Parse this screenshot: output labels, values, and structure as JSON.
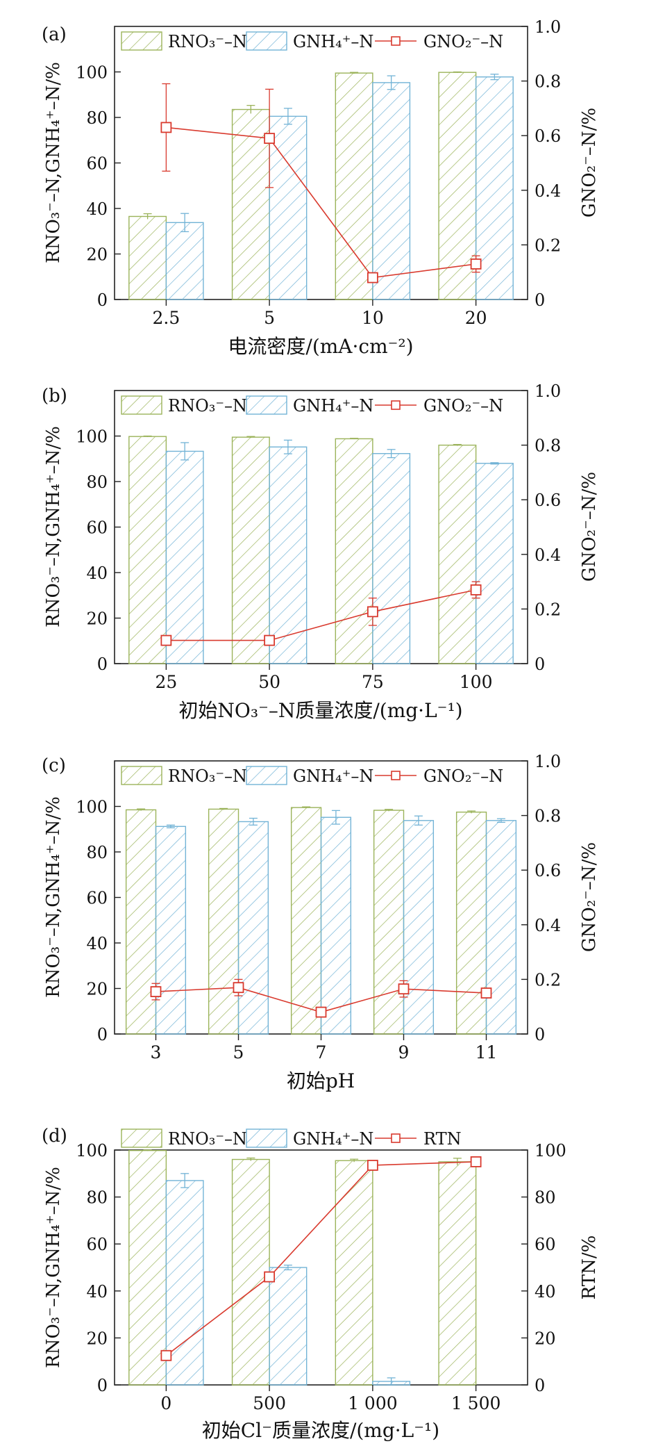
{
  "colors": {
    "green": "#9bb35a",
    "blue": "#72b3d6",
    "red": "#d93a2e",
    "axis": "#222222"
  },
  "chart_data": [
    {
      "panel_label": "(a)",
      "type": "bar",
      "categories": [
        "2.5",
        "5",
        "10",
        "20"
      ],
      "xlabel": "电流密度/(mA·cm⁻²)",
      "ylabel": "RNO₃⁻–N,GNH₄⁺–N/%",
      "y2label": "GNO₂⁻–N/%",
      "ylim": [
        0,
        120
      ],
      "yticks": [
        0,
        20,
        40,
        60,
        80,
        100
      ],
      "y2lim": [
        0,
        1.0
      ],
      "y2ticks": [
        "0",
        "0.2",
        "0.4",
        "0.6",
        "0.8",
        "1.0"
      ],
      "legend": [
        "RNO₃⁻–N",
        "GNH₄⁺–N",
        "GNO₂⁻–N"
      ],
      "bars1": [
        36.5,
        83.5,
        99.5,
        99.8
      ],
      "bars1_err": [
        1.2,
        1.8,
        0.3,
        0.2
      ],
      "bars2": [
        33.8,
        80.5,
        95.3,
        97.8
      ],
      "bars2_err": [
        4.0,
        3.5,
        3.0,
        1.2
      ],
      "line": [
        0.63,
        0.59,
        0.08,
        0.13
      ],
      "line_err": [
        0.16,
        0.18,
        0.01,
        0.03
      ]
    },
    {
      "panel_label": "(b)",
      "type": "bar",
      "categories": [
        "25",
        "50",
        "75",
        "100"
      ],
      "xlabel": "初始NO₃⁻–N质量浓度/(mg·L⁻¹)",
      "ylabel": "RNO₃⁻–N,GNH₄⁺–N/%",
      "y2label": "GNO₂⁻–N/%",
      "ylim": [
        0,
        120
      ],
      "yticks": [
        0,
        20,
        40,
        60,
        80,
        100
      ],
      "y2lim": [
        0,
        1.0
      ],
      "y2ticks": [
        "0",
        "0.2",
        "0.4",
        "0.6",
        "0.8",
        "1.0"
      ],
      "legend": [
        "RNO₃⁻–N",
        "GNH₄⁺–N",
        "GNO₂⁻–N"
      ],
      "bars1": [
        99.8,
        99.5,
        98.8,
        96.0
      ],
      "bars1_err": [
        0.2,
        0.3,
        0.2,
        0.3
      ],
      "bars2": [
        93.3,
        95.2,
        92.3,
        88.0
      ],
      "bars2_err": [
        3.8,
        3.0,
        1.8,
        0.3
      ],
      "line": [
        0.085,
        0.085,
        0.19,
        0.27
      ],
      "line_err": [
        0.01,
        0.01,
        0.05,
        0.03
      ]
    },
    {
      "panel_label": "(c)",
      "type": "bar",
      "categories": [
        "3",
        "5",
        "7",
        "9",
        "11"
      ],
      "xlabel": "初始pH",
      "ylabel": "RNO₃⁻–N,GNH₄⁺–N/%",
      "y2label": "GNO₂⁻–N/%",
      "ylim": [
        0,
        120
      ],
      "yticks": [
        0,
        20,
        40,
        60,
        80,
        100
      ],
      "y2lim": [
        0,
        1.0
      ],
      "y2ticks": [
        "0",
        "0.2",
        "0.4",
        "0.6",
        "0.8",
        "1.0"
      ],
      "legend": [
        "RNO₃⁻–N",
        "GNH₄⁺–N",
        "GNO₂⁻–N"
      ],
      "bars1": [
        98.5,
        98.8,
        99.5,
        98.3,
        97.5
      ],
      "bars1_err": [
        0.4,
        0.3,
        0.3,
        0.4,
        0.5
      ],
      "bars2": [
        91.2,
        93.3,
        95.2,
        93.8,
        93.8
      ],
      "bars2_err": [
        0.6,
        1.5,
        3.0,
        2.0,
        0.8
      ],
      "line": [
        0.155,
        0.17,
        0.08,
        0.165,
        0.15
      ],
      "line_err": [
        0.03,
        0.03,
        0.01,
        0.03,
        0.01
      ]
    },
    {
      "panel_label": "(d)",
      "type": "bar",
      "categories": [
        "0",
        "500",
        "1 000",
        "1 500"
      ],
      "xlabel": "初始Cl⁻质量浓度/(mg·L⁻¹)",
      "ylabel": "RNO₃⁻–N,GNH₄⁺–N/%",
      "y2label": "RTN/%",
      "ylim": [
        0,
        100
      ],
      "yticks": [
        0,
        20,
        40,
        60,
        80,
        100
      ],
      "y2lim": [
        0,
        100
      ],
      "y2ticks": [
        "0",
        "20",
        "40",
        "60",
        "80",
        "100"
      ],
      "legend": [
        "RNO₃⁻–N",
        "GNH₄⁺–N",
        "RTN"
      ],
      "bars1": [
        99.8,
        96.0,
        95.5,
        95.0
      ],
      "bars1_err": [
        0.2,
        0.6,
        0.6,
        1.5
      ],
      "bars2": [
        87.0,
        50.0,
        1.5,
        0.0
      ],
      "bars2_err": [
        3.0,
        1.0,
        1.5,
        0.0
      ],
      "line": [
        12.5,
        46.0,
        93.5,
        95.0
      ],
      "line_err": [
        2.0,
        1.0,
        0.5,
        0.5
      ]
    }
  ]
}
